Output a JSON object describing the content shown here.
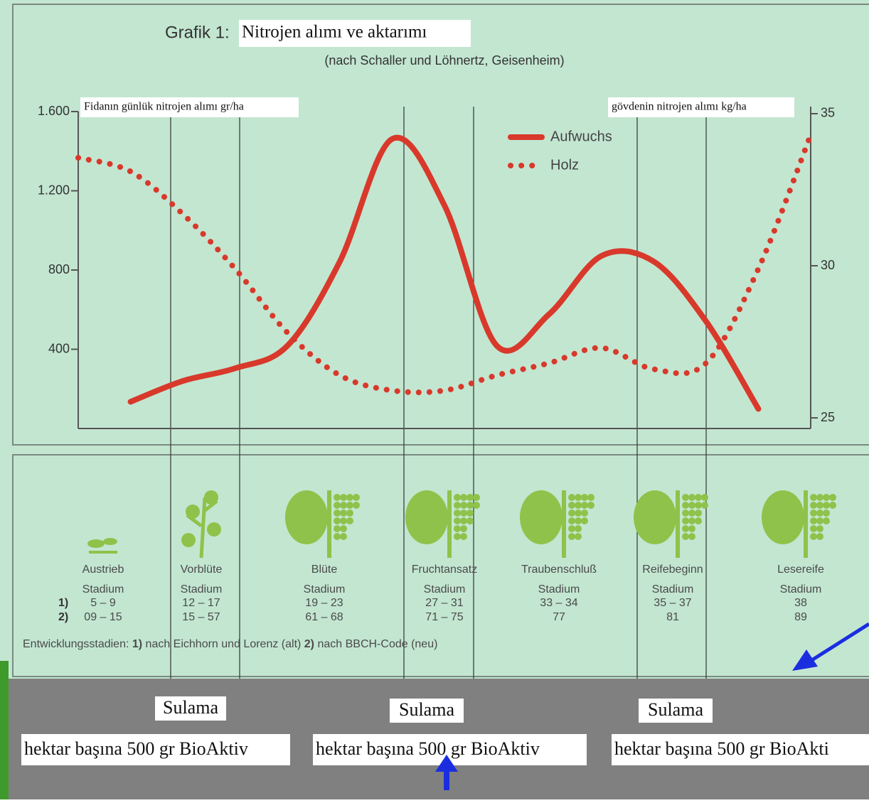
{
  "chart_data": {
    "type": "line",
    "title": "Grafik 1:",
    "annotations": [
      "Nitrojen alımı ve aktarımı"
    ],
    "subtitle": "(nach Schaller und Löhnertz, Geisenheim)",
    "ylabel": "Fidanın günlük nitrojen alımı gr/ha",
    "y2label": "gövdenin nitrojen alımı kg/ha",
    "categories": [
      null,
      null,
      null,
      null,
      null,
      null,
      null,
      null,
      null,
      null,
      null,
      null,
      null,
      null,
      null
    ],
    "series": [
      {
        "name": "Aufwuchs",
        "color": "#d8392b",
        "style": "solid",
        "values": [
          null,
          135,
          240,
          304,
          418,
          843,
          1462,
          1126,
          418,
          577,
          871,
          843,
          541,
          99,
          null
        ]
      },
      {
        "name": "Holz",
        "color": "#d8392b",
        "style": "dotted",
        "axis": "y2",
        "values": [
          33.55,
          33.1,
          31.7,
          29.9,
          27.8,
          26.4,
          25.9,
          25.9,
          26.4,
          26.8,
          27.3,
          26.6,
          26.8,
          29.9,
          34.3
        ]
      }
    ],
    "ylim": [
      0,
      1600
    ],
    "yticks": [
      {
        "value": 400,
        "label": "400"
      },
      800,
      {
        "value": 1200,
        "label": "1.200"
      },
      {
        "value": 1600,
        "label": "1.600"
      }
    ],
    "y2lim": [
      24.65,
      35.07
    ],
    "y2ticks": [
      25,
      30,
      35
    ],
    "grid": false
  },
  "stages": {
    "stage_label": "Stadium",
    "code_markers": [
      "1)",
      "2)"
    ],
    "items": [
      {
        "name": "Austrieb",
        "code1": "5 – 9",
        "code2": "09 – 15"
      },
      {
        "name": "Vorblüte",
        "code1": "12 – 17",
        "code2": "15 – 57"
      },
      {
        "name": "Blüte",
        "code1": "19 – 23",
        "code2": "61 – 68"
      },
      {
        "name": "Fruchtansatz",
        "code1": "27 – 31",
        "code2": "71 – 75"
      },
      {
        "name": "Traubenschluß",
        "code1": "33 – 34",
        "code2": "77"
      },
      {
        "name": "Reifebeginn",
        "code1": "35 – 37",
        "code2": "81"
      },
      {
        "name": "Lesereife",
        "code1": "38",
        "code2": "89"
      }
    ],
    "footnote": [
      "Entwicklungsstadien: ",
      "1)",
      " nach Eichhorn und Lorenz (alt) ",
      "2)",
      " nach BBCH-Code (neu)"
    ]
  },
  "notes": [
    {
      "title": "Sulama",
      "text": "hektar başına 500 gr BioAktiv"
    },
    {
      "title": "Sulama",
      "text": "hektar başına 500 gr BioAktiv"
    },
    {
      "title": "Sulama",
      "text": "hektar başına 500 gr BioAkti"
    }
  ]
}
